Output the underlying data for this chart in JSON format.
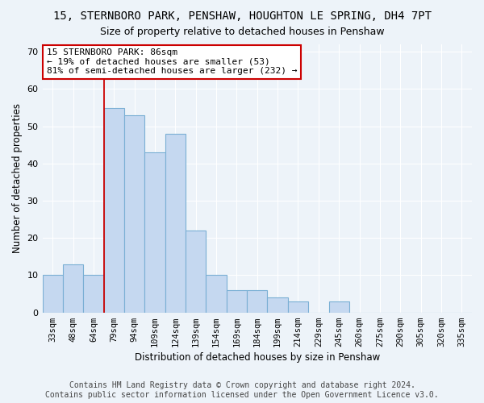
{
  "title1": "15, STERNBORO PARK, PENSHAW, HOUGHTON LE SPRING, DH4 7PT",
  "title2": "Size of property relative to detached houses in Penshaw",
  "xlabel": "Distribution of detached houses by size in Penshaw",
  "ylabel": "Number of detached properties",
  "categories": [
    "33sqm",
    "48sqm",
    "64sqm",
    "79sqm",
    "94sqm",
    "109sqm",
    "124sqm",
    "139sqm",
    "154sqm",
    "169sqm",
    "184sqm",
    "199sqm",
    "214sqm",
    "229sqm",
    "245sqm",
    "260sqm",
    "275sqm",
    "290sqm",
    "305sqm",
    "320sqm",
    "335sqm"
  ],
  "values": [
    10,
    13,
    10,
    55,
    53,
    43,
    48,
    22,
    10,
    6,
    6,
    4,
    3,
    0,
    3,
    0,
    0,
    0,
    0,
    0,
    0
  ],
  "bar_color": "#c5d8f0",
  "bar_edge_color": "#7aafd4",
  "vline_color": "#cc0000",
  "vline_x_idx": 3,
  "annotation_text": "15 STERNBORO PARK: 86sqm\n← 19% of detached houses are smaller (53)\n81% of semi-detached houses are larger (232) →",
  "ylim": [
    0,
    72
  ],
  "yticks": [
    0,
    10,
    20,
    30,
    40,
    50,
    60,
    70
  ],
  "footer1": "Contains HM Land Registry data © Crown copyright and database right 2024.",
  "footer2": "Contains public sector information licensed under the Open Government Licence v3.0.",
  "bg_color": "#edf3f9",
  "grid_color": "#ffffff"
}
